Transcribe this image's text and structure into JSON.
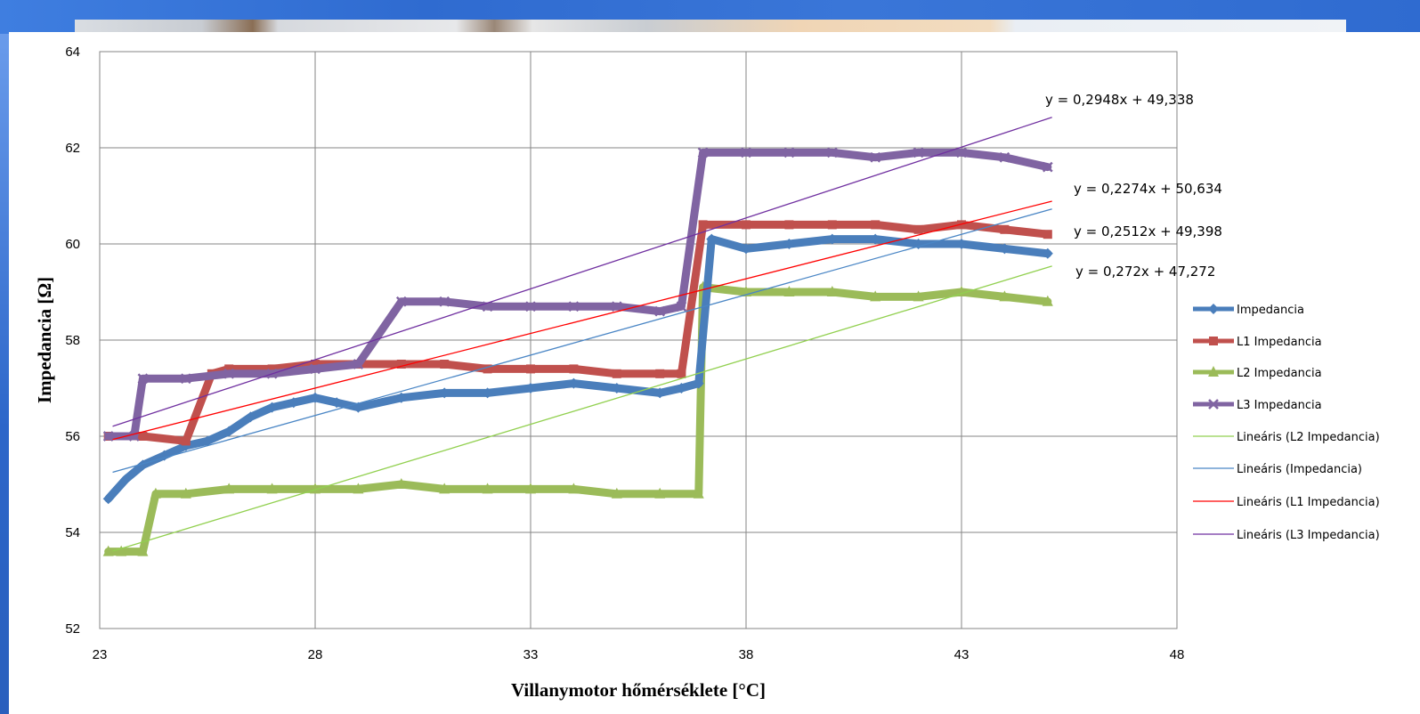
{
  "chart_data": {
    "type": "line",
    "title": "",
    "xlabel": "Villanymotor hőmérséklete [°C]",
    "ylabel": "Impedancia [Ω]",
    "xlim": [
      23,
      48
    ],
    "ylim": [
      52,
      64
    ],
    "xticks": [
      23,
      28,
      33,
      38,
      43,
      48
    ],
    "yticks": [
      52,
      54,
      56,
      58,
      60,
      62,
      64
    ],
    "grid": true,
    "legend_position": "right",
    "series": [
      {
        "name": "Impedancia",
        "color": "#4a7ebb",
        "marker": "diamond",
        "x": [
          23.2,
          23.6,
          24.0,
          24.5,
          25.0,
          25.5,
          26.0,
          26.5,
          27.0,
          27.5,
          28.0,
          28.5,
          29.0,
          30.0,
          31.0,
          32.0,
          33.0,
          34.0,
          35.0,
          36.0,
          36.5,
          36.9,
          37.2,
          38.0,
          39.0,
          40.0,
          41.0,
          42.0,
          43.0,
          44.0,
          45.0
        ],
        "values": [
          54.7,
          55.1,
          55.4,
          55.6,
          55.8,
          55.9,
          56.1,
          56.4,
          56.6,
          56.7,
          56.8,
          56.7,
          56.6,
          56.8,
          56.9,
          56.9,
          57.0,
          57.1,
          57.0,
          56.9,
          57.0,
          57.1,
          60.1,
          59.9,
          60.0,
          60.1,
          60.1,
          60.0,
          60.0,
          59.9,
          59.8
        ]
      },
      {
        "name": "L1 Impedancia",
        "color": "#c0504d",
        "marker": "square",
        "x": [
          23.2,
          24.0,
          25.0,
          25.6,
          26.0,
          27.0,
          28.0,
          29.0,
          30.0,
          31.0,
          32.0,
          33.0,
          34.0,
          35.0,
          36.0,
          36.5,
          37.0,
          38.0,
          39.0,
          40.0,
          41.0,
          42.0,
          43.0,
          44.0,
          45.0
        ],
        "values": [
          56.0,
          56.0,
          55.9,
          57.3,
          57.4,
          57.4,
          57.5,
          57.5,
          57.5,
          57.5,
          57.4,
          57.4,
          57.4,
          57.3,
          57.3,
          57.3,
          60.4,
          60.4,
          60.4,
          60.4,
          60.4,
          60.3,
          60.4,
          60.3,
          60.2
        ]
      },
      {
        "name": "L2 Impedancia",
        "color": "#9bbb59",
        "marker": "triangle",
        "x": [
          23.2,
          23.5,
          24.0,
          24.3,
          25.0,
          26.0,
          27.0,
          28.0,
          29.0,
          30.0,
          31.0,
          32.0,
          33.0,
          34.0,
          35.0,
          36.0,
          36.9,
          37.0,
          38.0,
          39.0,
          40.0,
          41.0,
          42.0,
          43.0,
          44.0,
          45.0
        ],
        "values": [
          53.6,
          53.6,
          53.6,
          54.8,
          54.8,
          54.9,
          54.9,
          54.9,
          54.9,
          55.0,
          54.9,
          54.9,
          54.9,
          54.9,
          54.8,
          54.8,
          54.8,
          59.1,
          59.0,
          59.0,
          59.0,
          58.9,
          58.9,
          59.0,
          58.9,
          58.8
        ]
      },
      {
        "name": "L3 Impedancia",
        "color": "#8064a2",
        "marker": "x",
        "x": [
          23.2,
          23.8,
          24.0,
          25.0,
          26.0,
          27.0,
          28.0,
          29.0,
          30.0,
          31.0,
          32.0,
          33.0,
          34.0,
          35.0,
          36.0,
          36.5,
          37.0,
          38.0,
          39.0,
          40.0,
          41.0,
          42.0,
          43.0,
          44.0,
          45.0
        ],
        "values": [
          56.0,
          56.0,
          57.2,
          57.2,
          57.3,
          57.3,
          57.4,
          57.5,
          58.8,
          58.8,
          58.7,
          58.7,
          58.7,
          58.7,
          58.6,
          58.7,
          61.9,
          61.9,
          61.9,
          61.9,
          61.8,
          61.9,
          61.9,
          61.8,
          61.6
        ]
      },
      {
        "name": "Lineáris (L2 Impedancia)",
        "color": "#92d050",
        "trend": {
          "slope": 0.272,
          "intercept": 47.272
        },
        "x_range": [
          23.3,
          45.1
        ]
      },
      {
        "name": "Lineáris (Impedancia)",
        "color": "#4a86c5",
        "trend": {
          "slope": 0.2512,
          "intercept": 49.398
        },
        "x_range": [
          23.3,
          45.1
        ]
      },
      {
        "name": "Lineáris (L1 Impedancia)",
        "color": "#ff0000",
        "trend": {
          "slope": 0.2274,
          "intercept": 50.634
        },
        "x_range": [
          23.3,
          45.1
        ]
      },
      {
        "name": "Lineáris (L3 Impedancia)",
        "color": "#7030a0",
        "trend": {
          "slope": 0.2948,
          "intercept": 49.338
        },
        "x_range": [
          23.3,
          45.1
        ]
      }
    ],
    "annotations": [
      "y = 0,2948x + 49,338",
      "y = 0,2274x + 50,634",
      "y = 0,2512x + 49,398",
      "y = 0,272x + 47,272"
    ]
  }
}
